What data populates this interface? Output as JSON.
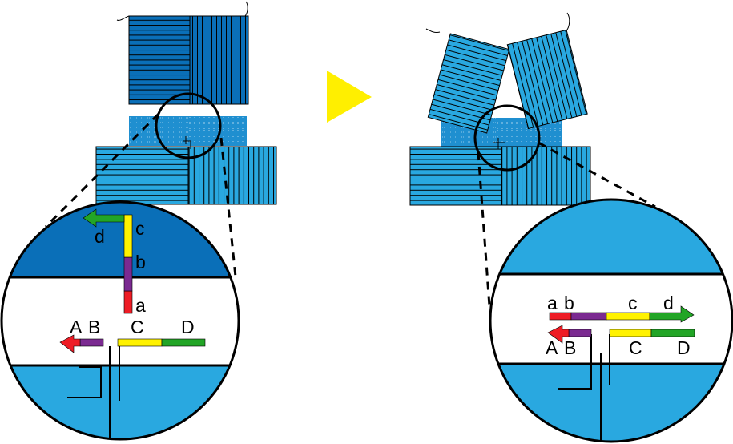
{
  "colors": {
    "dark_blue": "#0a6fb8",
    "mid_blue": "#1f8fd0",
    "light_blue": "#29a8e0",
    "arrow": "#ffef00",
    "red": "#ee1c25",
    "purple": "#7b2a91",
    "yellow": "#fff200",
    "green": "#22a526",
    "line": "#000000"
  },
  "arrow_icon": "yellow-triangle-right",
  "left_panel": {
    "upper_strand_labels": {
      "a": "a",
      "b": "b",
      "c": "c",
      "d": "d"
    },
    "lower_strand_labels": {
      "A": "A",
      "B": "B",
      "C": "C",
      "D": "D"
    }
  },
  "right_panel": {
    "upper_strand_labels": {
      "a": "a",
      "b": "b",
      "c": "c",
      "d": "d"
    },
    "lower_strand_labels": {
      "A": "A",
      "B": "B",
      "C": "C",
      "D": "D"
    }
  }
}
